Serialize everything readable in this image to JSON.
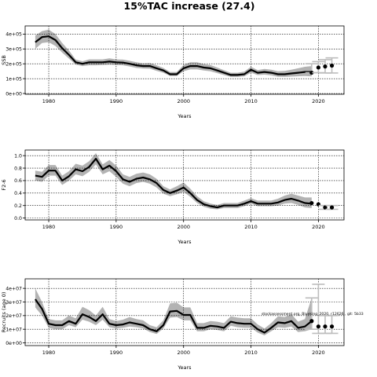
{
  "chart_data": {
    "title": "15%TAC increase (27.4)",
    "annotation": "stockassessment.org, Blueking_2020, r12626 , git: 5b33",
    "panels": [
      {
        "type": "line",
        "ylabel": "SSB",
        "xlabel": "Years",
        "xlim": [
          1976.5,
          2023.8
        ],
        "ylim": [
          -5000,
          455000
        ],
        "xticks": [
          1980,
          1990,
          2000,
          2010,
          2020
        ],
        "xtick_labels": [
          "1980",
          "1990",
          "2000",
          "2010",
          "2020"
        ],
        "yticks": [
          0,
          100000,
          200000,
          300000,
          400000
        ],
        "ytick_labels": [
          "0e+00",
          "1e+05",
          "2e+05",
          "3e+05",
          "4e+05"
        ],
        "grid_x": [
          1980,
          1990,
          2000,
          2010,
          2020
        ],
        "grid_y": [
          0,
          100000,
          200000,
          300000,
          400000
        ],
        "years": [
          1978,
          1979,
          1980,
          1981,
          1982,
          1983,
          1984,
          1985,
          1986,
          1987,
          1988,
          1989,
          1990,
          1991,
          1992,
          1993,
          1994,
          1995,
          1996,
          1997,
          1998,
          1999,
          2000,
          2001,
          2002,
          2003,
          2004,
          2005,
          2006,
          2007,
          2008,
          2009,
          2010,
          2011,
          2012,
          2013,
          2014,
          2015,
          2016,
          2017,
          2018,
          2019
        ],
        "estimate": [
          345000,
          380000,
          385000,
          360000,
          305000,
          260000,
          210000,
          200000,
          210000,
          210000,
          210000,
          215000,
          210000,
          208000,
          200000,
          190000,
          185000,
          185000,
          170000,
          155000,
          130000,
          130000,
          170000,
          185000,
          185000,
          175000,
          170000,
          155000,
          140000,
          125000,
          125000,
          130000,
          160000,
          140000,
          145000,
          140000,
          130000,
          130000,
          135000,
          140000,
          145000,
          145000
        ],
        "ci_low": [
          300000,
          340000,
          345000,
          320000,
          275000,
          235000,
          195000,
          185000,
          190000,
          190000,
          192000,
          195000,
          192000,
          190000,
          182000,
          172000,
          168000,
          167000,
          152000,
          140000,
          118000,
          118000,
          150000,
          162000,
          162000,
          155000,
          150000,
          137000,
          124000,
          112000,
          112000,
          115000,
          140000,
          124000,
          127000,
          122000,
          113000,
          112000,
          114000,
          116000,
          118000,
          115000
        ],
        "ci_high": [
          390000,
          420000,
          430000,
          400000,
          340000,
          290000,
          228000,
          217000,
          230000,
          230000,
          230000,
          237000,
          230000,
          228000,
          220000,
          210000,
          203000,
          205000,
          190000,
          172000,
          145000,
          145000,
          192000,
          210000,
          210000,
          198000,
          192000,
          175000,
          157000,
          140000,
          140000,
          148000,
          180000,
          158000,
          165000,
          160000,
          150000,
          152000,
          160000,
          170000,
          180000,
          185000
        ],
        "forecast": {
          "years": [
            2019,
            2020,
            2021,
            2022
          ],
          "median": [
            140000,
            175000,
            182000,
            188000
          ],
          "low": [
            140000,
            140000,
            138000,
            138000
          ],
          "high": [
            200000,
            215000,
            228000,
            240000
          ]
        }
      },
      {
        "type": "line",
        "ylabel": "F2-6",
        "xlabel": "Years",
        "xlim": [
          1976.5,
          2023.8
        ],
        "ylim": [
          -0.03,
          1.09
        ],
        "xticks": [
          1980,
          1990,
          2000,
          2010,
          2020
        ],
        "xtick_labels": [
          "1980",
          "1990",
          "2000",
          "2010",
          "2020"
        ],
        "yticks": [
          0.0,
          0.2,
          0.4,
          0.6,
          0.8,
          1.0
        ],
        "ytick_labels": [
          "0.0",
          "0.2",
          "0.4",
          "0.6",
          "0.8",
          "1.0"
        ],
        "grid_x": [
          1980,
          1990,
          2000,
          2010,
          2020
        ],
        "grid_y": [
          0,
          0.2,
          0.4,
          0.6,
          0.8,
          1.0
        ],
        "years": [
          1978,
          1979,
          1980,
          1981,
          1982,
          1983,
          1984,
          1985,
          1986,
          1987,
          1988,
          1989,
          1990,
          1991,
          1992,
          1993,
          1994,
          1995,
          1996,
          1997,
          1998,
          1999,
          2000,
          2001,
          2002,
          2003,
          2004,
          2005,
          2006,
          2007,
          2008,
          2009,
          2010,
          2011,
          2012,
          2013,
          2014,
          2015,
          2016,
          2017,
          2018,
          2019
        ],
        "estimate": [
          0.68,
          0.66,
          0.76,
          0.76,
          0.6,
          0.67,
          0.78,
          0.75,
          0.82,
          0.95,
          0.78,
          0.84,
          0.75,
          0.62,
          0.58,
          0.63,
          0.65,
          0.62,
          0.56,
          0.45,
          0.4,
          0.44,
          0.49,
          0.4,
          0.29,
          0.22,
          0.19,
          0.17,
          0.2,
          0.2,
          0.2,
          0.23,
          0.27,
          0.23,
          0.23,
          0.23,
          0.25,
          0.29,
          0.31,
          0.28,
          0.24,
          0.23
        ],
        "ci_low": [
          0.6,
          0.58,
          0.68,
          0.68,
          0.53,
          0.6,
          0.7,
          0.67,
          0.74,
          0.86,
          0.7,
          0.75,
          0.66,
          0.55,
          0.51,
          0.56,
          0.58,
          0.55,
          0.49,
          0.39,
          0.35,
          0.38,
          0.42,
          0.34,
          0.24,
          0.18,
          0.15,
          0.14,
          0.16,
          0.16,
          0.16,
          0.19,
          0.23,
          0.19,
          0.19,
          0.19,
          0.2,
          0.23,
          0.24,
          0.21,
          0.17,
          0.16
        ],
        "ci_high": [
          0.76,
          0.74,
          0.85,
          0.85,
          0.68,
          0.75,
          0.87,
          0.84,
          0.91,
          1.04,
          0.86,
          0.93,
          0.84,
          0.7,
          0.66,
          0.71,
          0.73,
          0.7,
          0.63,
          0.51,
          0.46,
          0.51,
          0.57,
          0.47,
          0.35,
          0.27,
          0.23,
          0.21,
          0.24,
          0.24,
          0.24,
          0.28,
          0.32,
          0.28,
          0.28,
          0.28,
          0.31,
          0.36,
          0.39,
          0.36,
          0.33,
          0.33
        ],
        "forecast": {
          "years": [
            2019,
            2020,
            2021,
            2022
          ],
          "median": [
            0.24,
            0.22,
            0.17,
            0.17
          ],
          "low": [
            0.24,
            0.22,
            0.14,
            0.14
          ],
          "high": [
            0.24,
            0.22,
            0.2,
            0.2
          ]
        }
      },
      {
        "type": "line",
        "ylabel": "Recruits (age 0)",
        "xlabel": "Years",
        "xlim": [
          1976.5,
          2023.8
        ],
        "ylim": [
          -2000000,
          47000000
        ],
        "xticks": [
          1980,
          1990,
          2000,
          2010,
          2020
        ],
        "xtick_labels": [
          "1980",
          "1990",
          "2000",
          "2010",
          "2020"
        ],
        "yticks": [
          0,
          10000000,
          20000000,
          30000000,
          40000000
        ],
        "ytick_labels": [
          "0e+00",
          "1e+07",
          "2e+07",
          "3e+07",
          "4e+07"
        ],
        "grid_x": [
          1980,
          1990,
          2000,
          2010,
          2020
        ],
        "grid_y": [
          0,
          10000000,
          20000000,
          30000000,
          40000000
        ],
        "years": [
          1978,
          1979,
          1980,
          1981,
          1982,
          1983,
          1984,
          1985,
          1986,
          1987,
          1988,
          1989,
          1990,
          1991,
          1992,
          1993,
          1994,
          1995,
          1996,
          1997,
          1998,
          1999,
          2000,
          2001,
          2002,
          2003,
          2004,
          2005,
          2006,
          2007,
          2008,
          2009,
          2010,
          2011,
          2012,
          2013,
          2014,
          2015,
          2016,
          2017,
          2018,
          2019
        ],
        "estimate": [
          32000000,
          25000000,
          14000000,
          13000000,
          13000000,
          16000000,
          14000000,
          21000000,
          19000000,
          16000000,
          21000000,
          14000000,
          13000000,
          13500000,
          15000000,
          14000000,
          13000000,
          10000000,
          8500000,
          13000000,
          23000000,
          23500000,
          20500000,
          20500000,
          11000000,
          11000000,
          12500000,
          12000000,
          11000000,
          15500000,
          14500000,
          14000000,
          14000000,
          10000000,
          7500000,
          11000000,
          15000000,
          14500000,
          16000000,
          11000000,
          12000000,
          16000000
        ],
        "ci_low": [
          26000000,
          20000000,
          11000000,
          10000000,
          10000000,
          13000000,
          11500000,
          17000000,
          15500000,
          13000000,
          17000000,
          11500000,
          10500000,
          11000000,
          12000000,
          11500000,
          10500000,
          8000000,
          6500000,
          10500000,
          18500000,
          19000000,
          16500000,
          16500000,
          8500000,
          8500000,
          10000000,
          9500000,
          8500000,
          12500000,
          11500000,
          11000000,
          11000000,
          7500000,
          5500000,
          8500000,
          11500000,
          11000000,
          12000000,
          8000000,
          8500000,
          10000000
        ],
        "ci_high": [
          40000000,
          30000000,
          17500000,
          16500000,
          16500000,
          20000000,
          18000000,
          26500000,
          24000000,
          20000000,
          26500000,
          17500000,
          16000000,
          17000000,
          19000000,
          17500000,
          16500000,
          13000000,
          11500000,
          16500000,
          29000000,
          29500000,
          26000000,
          26000000,
          14500000,
          14500000,
          16000000,
          15500000,
          14500000,
          19500000,
          18500000,
          18000000,
          18000000,
          13500000,
          10500000,
          14500000,
          19500000,
          19000000,
          21000000,
          15500000,
          17500000,
          33000000
        ],
        "forecast": {
          "years": [
            2019,
            2020,
            2021,
            2022
          ],
          "median": [
            16000000,
            12000000,
            12000000,
            12000000
          ],
          "low": [
            10000000,
            7000000,
            7000000,
            7000000
          ],
          "high": [
            33000000,
            43000000,
            20000000,
            20000000
          ]
        }
      }
    ]
  }
}
